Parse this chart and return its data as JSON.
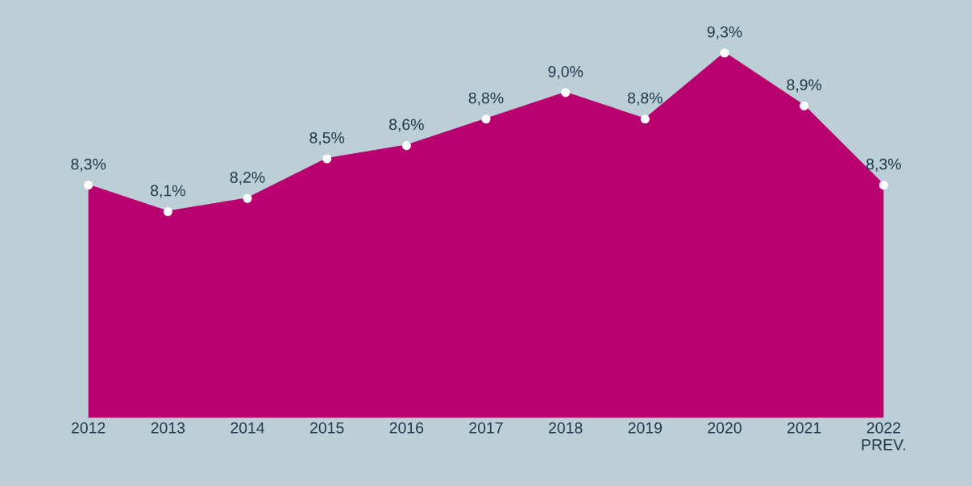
{
  "chart_data": {
    "type": "area",
    "categories": [
      "2012",
      "2013",
      "2014",
      "2015",
      "2016",
      "2017",
      "2018",
      "2019",
      "2020",
      "2021",
      "2022\nPREV."
    ],
    "series": [
      {
        "color": "#b8006e",
        "values": [
          8.3,
          8.1,
          8.2,
          8.5,
          8.6,
          8.8,
          9.0,
          8.8,
          9.3,
          8.9,
          8.3
        ],
        "value_labels": [
          "8,3%",
          "8,1%",
          "8,2%",
          "8,5%",
          "8,6%",
          "8,8%",
          "9,0%",
          "8,8%",
          "9,3%",
          "8,9%",
          "8,3%"
        ]
      }
    ],
    "tick_labels": "x",
    "marker": "circle",
    "legend": false
  }
}
